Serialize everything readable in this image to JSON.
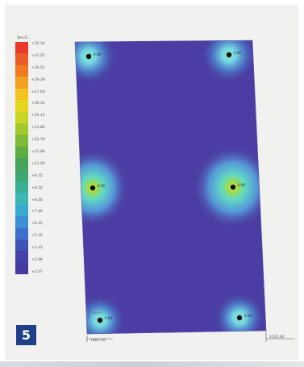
{
  "legend": {
    "title": "Tere Cl...",
    "values": [
      "+32.34",
      "+31.25",
      "+30.52",
      "+29.39",
      "+27.60",
      "+26.35",
      "+25.12",
      "+23.86",
      "+22.76",
      "+21.96",
      "+21.00",
      "+9.35",
      "+8.50",
      "+8.00",
      "+7.40",
      "+6.45",
      "+5.25",
      "+3.43",
      "+2.96",
      "+2.07"
    ],
    "colors": [
      "#e8392a",
      "#ec5a26",
      "#f07a22",
      "#f2a021",
      "#f3c41f",
      "#e7d51e",
      "#c9d425",
      "#a4c82d",
      "#7fba36",
      "#5dac44",
      "#46a458",
      "#3fa771",
      "#3baf94",
      "#3ab8b6",
      "#3aa9cf",
      "#3b8fd3",
      "#3d70c9",
      "#3f52b8",
      "#4541a8",
      "#463a9e"
    ]
  },
  "figure": {
    "badge": "5",
    "dim_left": "1865.00",
    "dim_right": "1535.00"
  },
  "supports": [
    {
      "label": "0.09"
    },
    {
      "label": "0.09"
    },
    {
      "label": "0.09"
    },
    {
      "label": "0.09"
    },
    {
      "label": "0.09"
    },
    {
      "label": "0.09"
    }
  ]
}
